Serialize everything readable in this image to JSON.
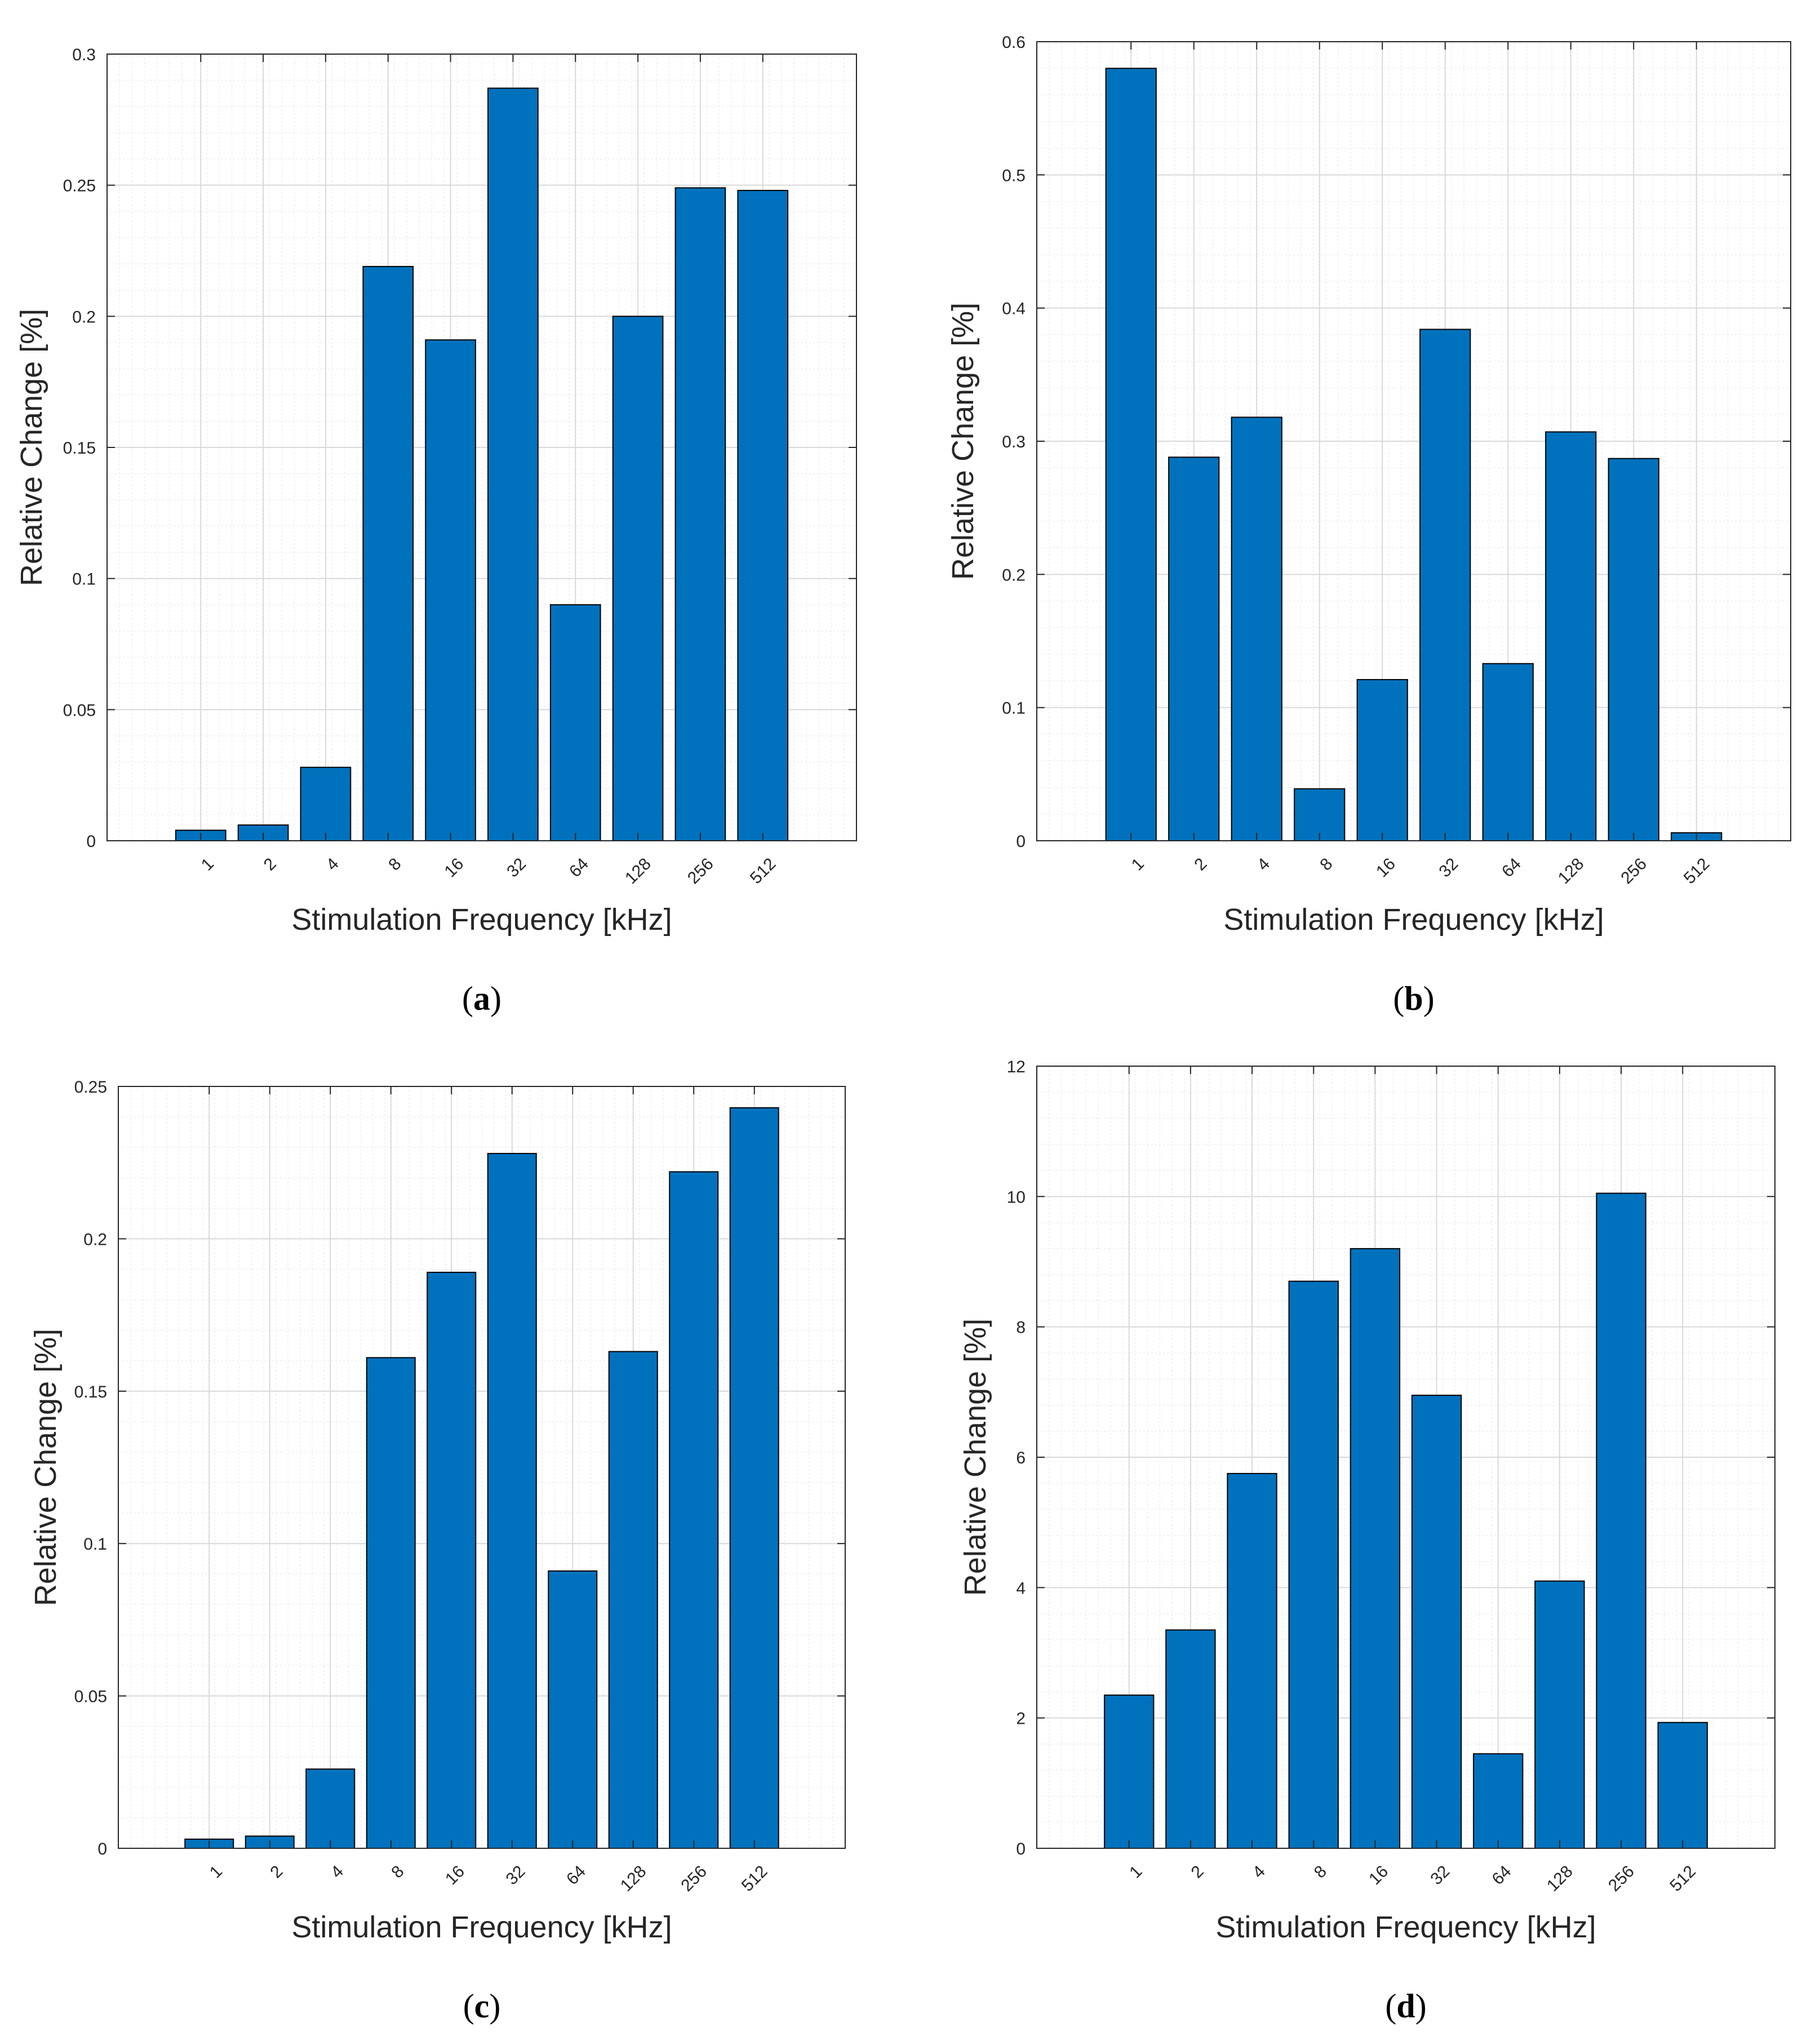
{
  "colors": {
    "bar_fill": "#0072BD",
    "bar_edge": "#000000",
    "axis": "#262626",
    "grid_major": "#d9d9d9",
    "grid_minor": "#ededed"
  },
  "chart_data": [
    {
      "id": "a",
      "type": "bar",
      "caption": "a",
      "categories": [
        "1",
        "2",
        "4",
        "8",
        "16",
        "32",
        "64",
        "128",
        "256",
        "512"
      ],
      "values": [
        0.004,
        0.006,
        0.028,
        0.219,
        0.191,
        0.287,
        0.09,
        0.2,
        0.249,
        0.248
      ],
      "xlabel": "Stimulation Frequency [kHz]",
      "ylabel": "Relative Change [%]",
      "ylim": [
        0,
        0.3
      ],
      "yticks": [
        0,
        0.05,
        0.1,
        0.15,
        0.2,
        0.25,
        0.3
      ],
      "ytick_labels": [
        "0",
        "0.05",
        "0.1",
        "0.15",
        "0.2",
        "0.25",
        "0.3"
      ],
      "grid": true,
      "minor_grid": true
    },
    {
      "id": "b",
      "type": "bar",
      "caption": "b",
      "categories": [
        "1",
        "2",
        "4",
        "8",
        "16",
        "32",
        "64",
        "128",
        "256",
        "512"
      ],
      "values": [
        0.58,
        0.288,
        0.318,
        0.039,
        0.121,
        0.384,
        0.133,
        0.307,
        0.287,
        0.006
      ],
      "xlabel": "Stimulation Frequency [kHz]",
      "ylabel": "Relative Change [%]",
      "ylim": [
        0,
        0.6
      ],
      "yticks": [
        0,
        0.1,
        0.2,
        0.3,
        0.4,
        0.5,
        0.6
      ],
      "ytick_labels": [
        "0",
        "0.1",
        "0.2",
        "0.3",
        "0.4",
        "0.5",
        "0.6"
      ],
      "grid": true,
      "minor_grid": true
    },
    {
      "id": "c",
      "type": "bar",
      "caption": "c",
      "categories": [
        "1",
        "2",
        "4",
        "8",
        "16",
        "32",
        "64",
        "128",
        "256",
        "512"
      ],
      "values": [
        0.003,
        0.004,
        0.026,
        0.161,
        0.189,
        0.228,
        0.091,
        0.163,
        0.222,
        0.243
      ],
      "xlabel": "Stimulation Frequency [kHz]",
      "ylabel": "Relative Change [%]",
      "ylim": [
        0,
        0.25
      ],
      "yticks": [
        0,
        0.05,
        0.1,
        0.15,
        0.2,
        0.25
      ],
      "ytick_labels": [
        "0",
        "0.05",
        "0.1",
        "0.15",
        "0.2",
        "0.25"
      ],
      "grid": true,
      "minor_grid": true
    },
    {
      "id": "d",
      "type": "bar",
      "caption": "d",
      "categories": [
        "1",
        "2",
        "4",
        "8",
        "16",
        "32",
        "64",
        "128",
        "256",
        "512"
      ],
      "values": [
        2.35,
        3.35,
        5.75,
        8.7,
        9.2,
        6.95,
        1.45,
        4.1,
        10.05,
        1.93
      ],
      "xlabel": "Stimulation Frequency [kHz]",
      "ylabel": "Relative Change [%]",
      "ylim": [
        0,
        12
      ],
      "yticks": [
        0,
        2,
        4,
        6,
        8,
        10,
        12
      ],
      "ytick_labels": [
        "0",
        "2",
        "4",
        "6",
        "8",
        "10",
        "12"
      ],
      "grid": true,
      "minor_grid": true
    }
  ]
}
